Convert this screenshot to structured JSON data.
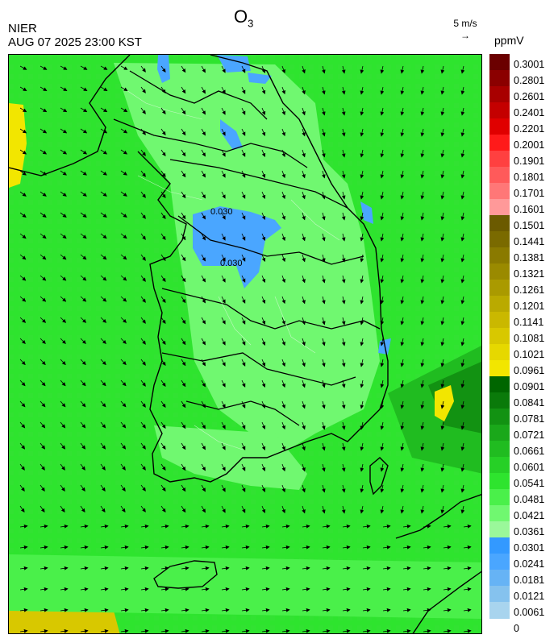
{
  "header": {
    "species": "O",
    "species_sub": "3",
    "agency": "NIER",
    "datetime": "AUG 07 2025 23:00 KST",
    "wind_reference": "5 m/s",
    "unit": "ppmV"
  },
  "legend": {
    "labels": [
      "0.3001",
      "0.2801",
      "0.2601",
      "0.2401",
      "0.2201",
      "0.2001",
      "0.1901",
      "0.1801",
      "0.1701",
      "0.1601",
      "0.1501",
      "0.1441",
      "0.1381",
      "0.1321",
      "0.1261",
      "0.1201",
      "0.1141",
      "0.1081",
      "0.1021",
      "0.0961",
      "0.0901",
      "0.0841",
      "0.0781",
      "0.0721",
      "0.0661",
      "0.0601",
      "0.0541",
      "0.0481",
      "0.0421",
      "0.0361",
      "0.0301",
      "0.0241",
      "0.0181",
      "0.0121",
      "0.0061",
      "0"
    ],
    "colors": [
      "#6b0000",
      "#8b0000",
      "#a80000",
      "#c40000",
      "#e00000",
      "#ff1a1a",
      "#ff4040",
      "#ff5a5a",
      "#ff7777",
      "#ff9999",
      "#6b5a00",
      "#7a6a00",
      "#8a7a00",
      "#9a8a00",
      "#aa9a00",
      "#baaa00",
      "#cab800",
      "#d8c800",
      "#e6d800",
      "#f2e600",
      "#006600",
      "#0a7a0a",
      "#129212",
      "#1aa81a",
      "#20bc20",
      "#26d026",
      "#2ee42e",
      "#4af04a",
      "#70f870",
      "#9af89a",
      "#3399ff",
      "#4aa6ff",
      "#66b3f5",
      "#85c2ee",
      "#a8d4ee"
    ]
  },
  "map": {
    "contour_labels": [
      "0.030",
      "0.030"
    ],
    "dominant_field": "O3 concentration mostly 0.0421–0.0661 ppmV over land and sea"
  }
}
